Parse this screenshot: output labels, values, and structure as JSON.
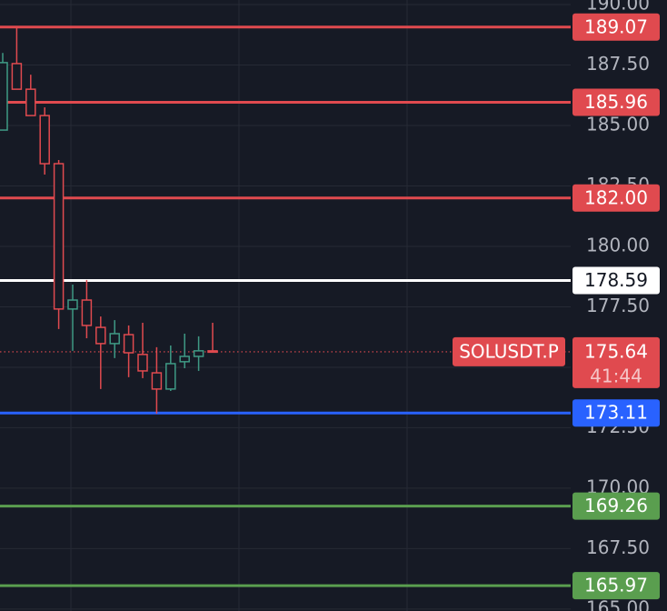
{
  "chart_data": {
    "type": "candlestick",
    "categories": [
      null,
      null,
      null,
      null,
      null,
      null,
      null,
      null,
      null,
      null,
      null,
      null,
      null,
      null,
      null,
      null
    ],
    "open": [
      184.81,
      187.56,
      186.5,
      185.41,
      183.42,
      177.41,
      177.78,
      176.65,
      175.98,
      176.35,
      175.53,
      174.77,
      174.1,
      175.23,
      175.45,
      175.68
    ],
    "high": [
      188.0,
      189.05,
      187.1,
      185.75,
      183.57,
      178.42,
      178.61,
      177.1,
      176.95,
      176.73,
      176.84,
      175.83,
      175.9,
      176.39,
      176.28,
      176.84
    ],
    "low": [
      184.8,
      186.5,
      185.4,
      182.97,
      176.58,
      175.68,
      176.2,
      174.1,
      175.38,
      174.59,
      174.55,
      173.08,
      174.02,
      174.96,
      174.85,
      175.6
    ],
    "close": [
      187.6,
      186.5,
      185.41,
      183.42,
      177.41,
      177.78,
      176.73,
      175.98,
      176.39,
      175.6,
      174.85,
      174.1,
      175.15,
      175.45,
      175.68,
      175.64
    ],
    "up_color": "#3f9a85",
    "down_color": "#e04a4f",
    "ylim": [
      164.92,
      190.19
    ],
    "yticks": [
      {
        "value": 165,
        "label": "165.00"
      },
      {
        "value": 167.5,
        "label": "167.50"
      },
      {
        "value": 170,
        "label": "170.00"
      },
      {
        "value": 172.5,
        "label": "172.50"
      },
      {
        "value": 175,
        "label": "175.00"
      },
      {
        "value": 177.5,
        "label": "177.50"
      },
      {
        "value": 180,
        "label": "180.00"
      },
      {
        "value": 182.5,
        "label": "182.50"
      },
      {
        "value": 185,
        "label": "185.00"
      },
      {
        "value": 187.5,
        "label": "187.50"
      },
      {
        "value": 190,
        "label": "190.00"
      }
    ],
    "grid": true,
    "price_lines": [
      {
        "value": 189.07,
        "label": "189.07",
        "color": "#e04a4f"
      },
      {
        "value": 185.96,
        "label": "185.96",
        "color": "#e04a4f"
      },
      {
        "value": 182,
        "label": "182.00",
        "color": "#e04a4f"
      },
      {
        "value": 178.59,
        "label": "178.59",
        "color": "#ffffff"
      },
      {
        "value": 173.11,
        "label": "173.11",
        "color": "#2962ff"
      },
      {
        "value": 169.26,
        "label": "169.26",
        "color": "#5a9e4f"
      },
      {
        "value": 165.97,
        "label": "165.97",
        "color": "#5a9e4f"
      }
    ],
    "last_price": {
      "name": "SOLUSDT.P",
      "value": 175.64,
      "label": "175.64",
      "countdown": "41:44",
      "color": "#e04a4f"
    }
  }
}
